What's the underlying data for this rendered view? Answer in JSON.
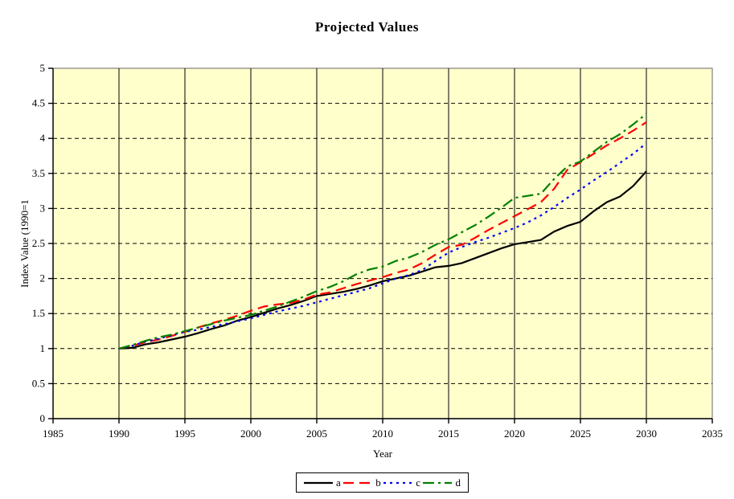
{
  "chart_data": {
    "type": "line",
    "title": "Projected Values",
    "xlabel": "Year",
    "ylabel": "Index Value (1990=1",
    "xlim": [
      1985,
      2035
    ],
    "ylim": [
      0,
      5
    ],
    "x_ticks": [
      1985,
      1990,
      1995,
      2000,
      2005,
      2010,
      2015,
      2020,
      2025,
      2030,
      2035
    ],
    "y_ticks": [
      0,
      0.5,
      1,
      1.5,
      2,
      2.5,
      3,
      3.5,
      4,
      4.5,
      5
    ],
    "grid": {
      "vertical": "solid",
      "horizontal": "dashed"
    },
    "legend_position": "bottom-center",
    "plot_background": "#FFFFCC",
    "border_color": "#808080",
    "axis_color": "#000000",
    "x": [
      1990,
      1991,
      1992,
      1993,
      1994,
      1995,
      1996,
      1997,
      1998,
      1999,
      2000,
      2001,
      2002,
      2003,
      2004,
      2005,
      2006,
      2007,
      2008,
      2009,
      2010,
      2011,
      2012,
      2013,
      2014,
      2015,
      2016,
      2017,
      2018,
      2019,
      2020,
      2021,
      2022,
      2023,
      2024,
      2025,
      2026,
      2027,
      2028,
      2029,
      2030
    ],
    "series": [
      {
        "name": "a",
        "color": "#000000",
        "style": "solid",
        "values": [
          1.0,
          1.01,
          1.06,
          1.09,
          1.13,
          1.17,
          1.22,
          1.28,
          1.33,
          1.4,
          1.45,
          1.51,
          1.57,
          1.62,
          1.68,
          1.75,
          1.78,
          1.81,
          1.85,
          1.9,
          1.96,
          2.0,
          2.04,
          2.1,
          2.16,
          2.18,
          2.22,
          2.29,
          2.36,
          2.43,
          2.49,
          2.52,
          2.55,
          2.67,
          2.75,
          2.81,
          2.96,
          3.09,
          3.17,
          3.32,
          3.53
        ]
      },
      {
        "name": "b",
        "color": "#FF0000",
        "style": "dashed",
        "values": [
          1.0,
          1.04,
          1.09,
          1.13,
          1.18,
          1.24,
          1.3,
          1.36,
          1.41,
          1.47,
          1.54,
          1.6,
          1.63,
          1.65,
          1.7,
          1.77,
          1.8,
          1.86,
          1.92,
          1.97,
          2.02,
          2.08,
          2.13,
          2.22,
          2.34,
          2.45,
          2.48,
          2.58,
          2.69,
          2.79,
          2.89,
          2.99,
          3.09,
          3.28,
          3.55,
          3.66,
          3.78,
          3.9,
          4.0,
          4.11,
          4.23
        ]
      },
      {
        "name": "c",
        "color": "#0000FF",
        "style": "dotted",
        "values": [
          1.0,
          1.04,
          1.1,
          1.14,
          1.19,
          1.24,
          1.27,
          1.31,
          1.35,
          1.39,
          1.43,
          1.48,
          1.53,
          1.57,
          1.61,
          1.66,
          1.71,
          1.76,
          1.81,
          1.86,
          1.93,
          2.0,
          2.05,
          2.12,
          2.25,
          2.37,
          2.45,
          2.52,
          2.58,
          2.65,
          2.72,
          2.8,
          2.9,
          3.02,
          3.15,
          3.27,
          3.4,
          3.52,
          3.65,
          3.78,
          3.93
        ]
      },
      {
        "name": "d",
        "color": "#008000",
        "style": "dashdot",
        "values": [
          1.0,
          1.05,
          1.11,
          1.16,
          1.2,
          1.25,
          1.3,
          1.35,
          1.4,
          1.44,
          1.48,
          1.54,
          1.6,
          1.67,
          1.74,
          1.82,
          1.88,
          1.96,
          2.06,
          2.13,
          2.17,
          2.25,
          2.3,
          2.38,
          2.48,
          2.56,
          2.66,
          2.76,
          2.88,
          3.01,
          3.15,
          3.18,
          3.21,
          3.42,
          3.6,
          3.67,
          3.81,
          3.95,
          4.06,
          4.2,
          4.35
        ]
      }
    ]
  }
}
